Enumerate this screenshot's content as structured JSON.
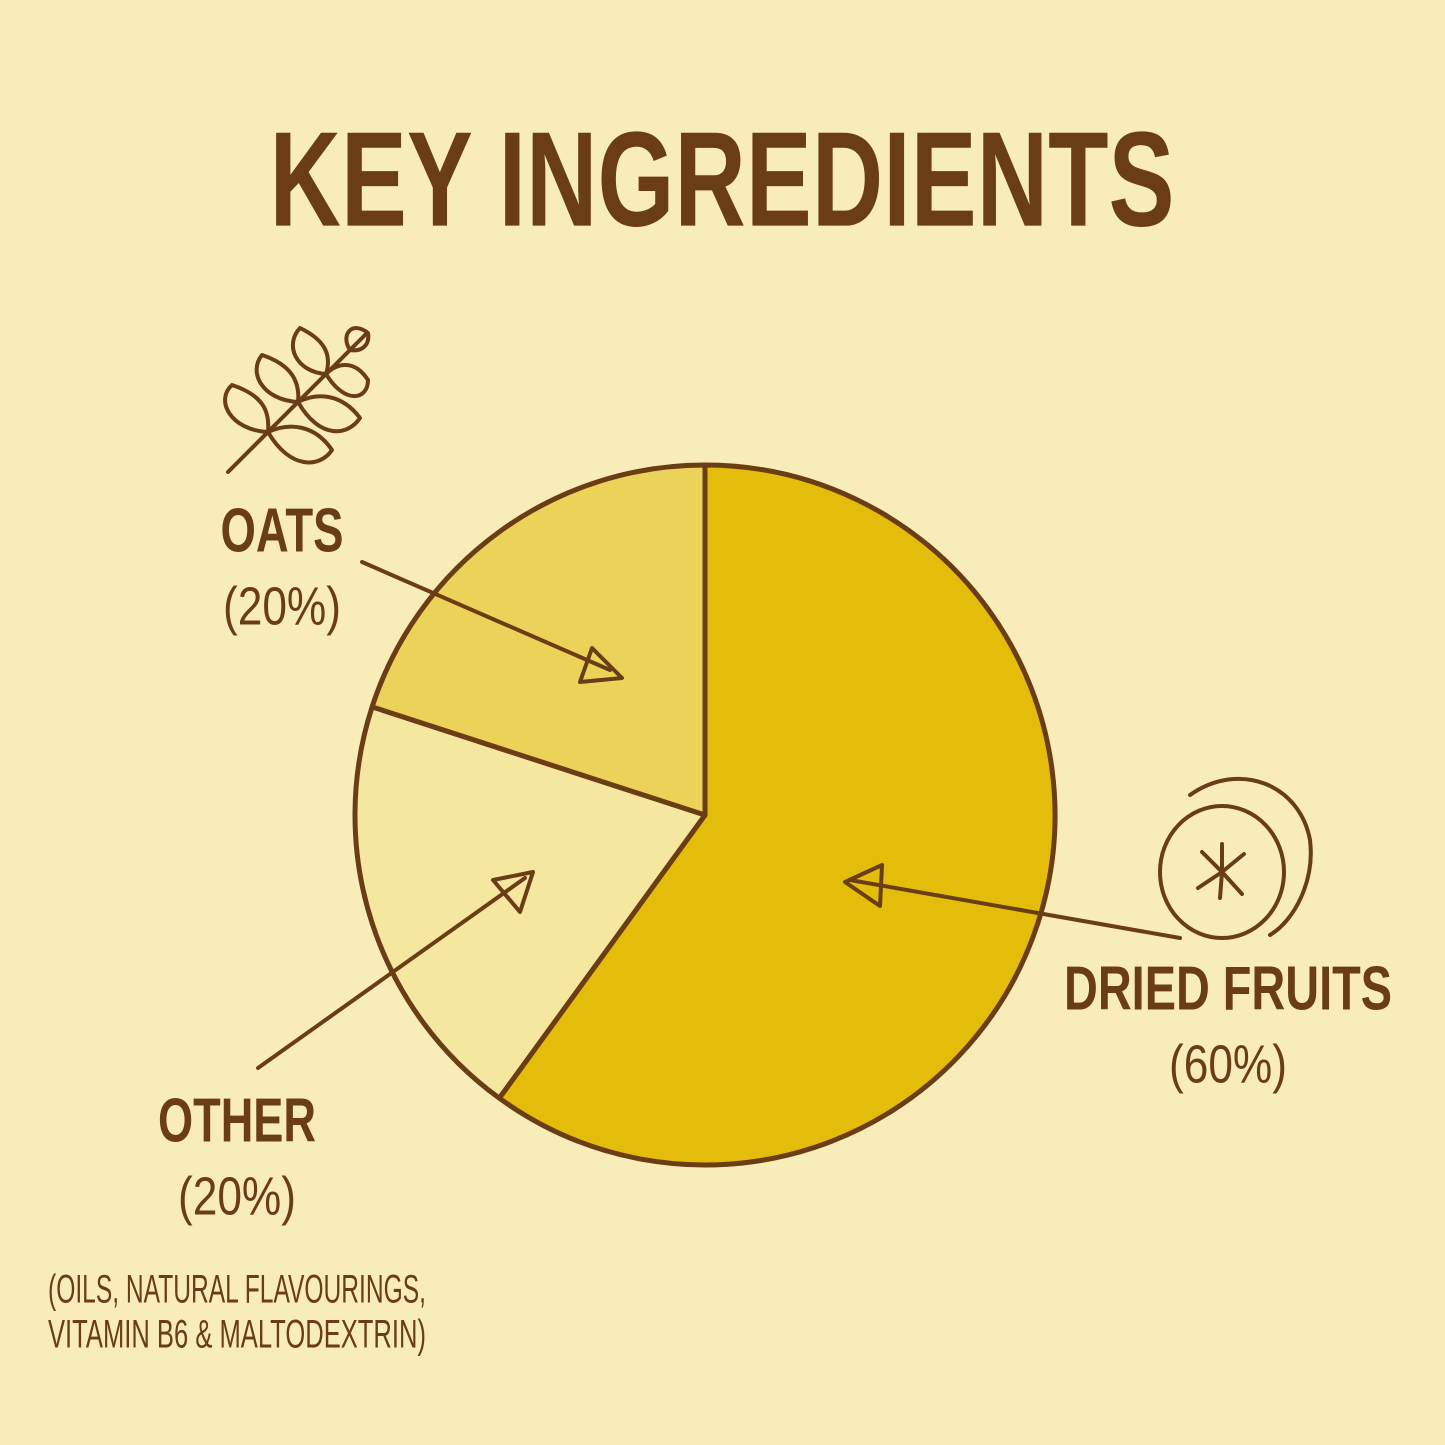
{
  "chart_data": {
    "type": "pie",
    "title": "KEY INGREDIENTS",
    "categories": [
      "DRIED FRUITS",
      "OTHER",
      "OATS"
    ],
    "values": [
      60,
      20,
      20
    ],
    "value_labels": [
      "(60%)",
      "(20%)",
      "(20%)"
    ],
    "colors": [
      "#e3bd0a",
      "#f5e6a0",
      "#ebd35a"
    ],
    "note": [
      "(OILS, NATURAL FLAVOURINGS,",
      "VITAMIN B6 & MALTODEXTRIN)"
    ]
  }
}
